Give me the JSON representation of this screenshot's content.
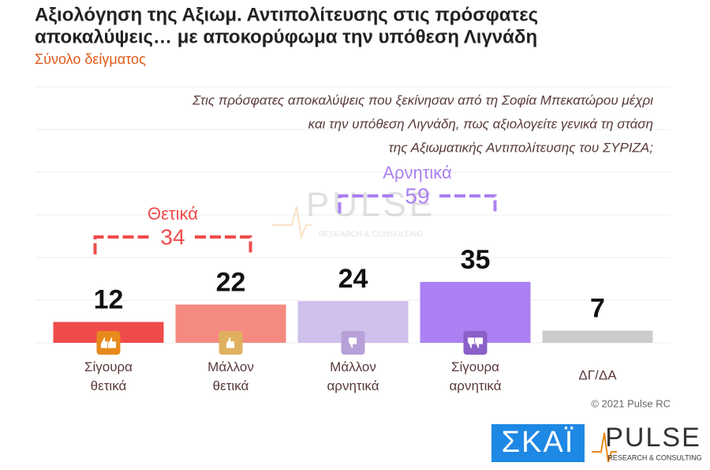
{
  "chart_data": {
    "type": "bar",
    "title": [
      "Αξιολόγηση της Αξιωμ. Αντιπολίτευσης στις πρόσφατες",
      "αποκαλύψεις… με αποκορύφωμα την υπόθεση Λιγνάδη"
    ],
    "subtitle": "Σύνολο δείγματος",
    "question": [
      "Στις πρόσφατες αποκαλύψεις που ξεκίνησαν από τη Σοφία Μπεκατώρου μέχρι",
      "και την υπόθεση Λιγνάδη, πως αξιολογείτε γενικά τη στάση",
      "της Αξιωματικής Αντιπολίτευσης του ΣΥΡΙΖΑ;"
    ],
    "categories": [
      "Σίγουρα θετικά",
      "Μάλλον θετικά",
      "Μάλλον αρνητικά",
      "Σίγουρα αρνητικά",
      "ΔΓ/ΔΑ"
    ],
    "values": [
      12,
      22,
      24,
      35,
      7
    ],
    "colors": [
      "#f04b4b",
      "#f58a80",
      "#cfc0ec",
      "#ab80f2",
      "#cccccc"
    ],
    "ylim": [
      0,
      147
    ],
    "groups": [
      {
        "label": "Θετικά",
        "value": 34,
        "color": "#f04b4b"
      },
      {
        "label": "Αρνητικά",
        "value": 59,
        "color": "#ab80f2"
      }
    ],
    "copyright": "© 2021 Pulse RC",
    "logos": {
      "skai": "ΣΚΑΪ",
      "pulse": "PULSE",
      "pulse_sub": "RESEARCH & CONSULTING"
    }
  }
}
